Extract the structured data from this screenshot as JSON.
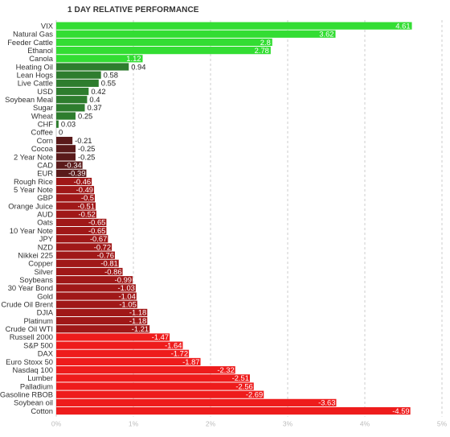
{
  "chart_data": {
    "type": "bar",
    "orientation": "horizontal",
    "title": "1 DAY RELATIVE PERFORMANCE",
    "xlabel": "",
    "ylabel": "",
    "xlim": [
      0,
      5
    ],
    "grid": true,
    "x_ticks": [
      "0%",
      "1%",
      "2%",
      "3%",
      "4%",
      "5%"
    ],
    "colors": {
      "positive_bright": "#33dd33",
      "positive_dark": "#2e7d2e",
      "negative_dark": "#5a1a1a",
      "negative_mid": "#a01818",
      "negative_bright": "#ee1c1c",
      "grid": "#cccccc"
    },
    "categories": [
      "VIX",
      "Natural Gas",
      "Feeder Cattle",
      "Ethanol",
      "Canola",
      "Heating Oil",
      "Lean Hogs",
      "Live Cattle",
      "USD",
      "Soybean Meal",
      "Sugar",
      "Wheat",
      "CHF",
      "Coffee",
      "Corn",
      "Cocoa",
      "2 Year Note",
      "CAD",
      "EUR",
      "Rough Rice",
      "5 Year Note",
      "GBP",
      "Orange Juice",
      "AUD",
      "Oats",
      "10 Year Note",
      "JPY",
      "NZD",
      "Nikkei 225",
      "Copper",
      "Silver",
      "Soybeans",
      "30 Year Bond",
      "Gold",
      "Crude Oil Brent",
      "DJIA",
      "Platinum",
      "Crude Oil WTI",
      "Russell 2000",
      "S&P 500",
      "DAX",
      "Euro Stoxx 50",
      "Nasdaq 100",
      "Lumber",
      "Palladium",
      "Gasoline RBOB",
      "Soybean oil",
      "Cotton"
    ],
    "values": [
      4.61,
      3.62,
      2.8,
      2.78,
      1.12,
      0.94,
      0.58,
      0.55,
      0.42,
      0.4,
      0.37,
      0.25,
      0.03,
      0,
      -0.21,
      -0.25,
      -0.25,
      -0.34,
      -0.39,
      -0.46,
      -0.49,
      -0.5,
      -0.51,
      -0.52,
      -0.65,
      -0.65,
      -0.67,
      -0.72,
      -0.76,
      -0.81,
      -0.86,
      -0.99,
      -1.03,
      -1.04,
      -1.05,
      -1.18,
      -1.18,
      -1.21,
      -1.47,
      -1.64,
      -1.72,
      -1.87,
      -2.32,
      -2.51,
      -2.56,
      -2.69,
      -3.63,
      -4.59
    ],
    "value_labels": [
      "4.61",
      "3.62",
      "2.8",
      "2.78",
      "1.12",
      "0.94",
      "0.58",
      "0.55",
      "0.42",
      "0.4",
      "0.37",
      "0.25",
      "0.03",
      "0",
      "-0.21",
      "-0.25",
      "-0.25",
      "-0.34",
      "-0.39",
      "-0.46",
      "-0.49",
      "-0.5",
      "-0.51",
      "-0.52",
      "-0.65",
      "-0.65",
      "-0.67",
      "-0.72",
      "-0.76",
      "-0.81",
      "-0.86",
      "-0.99",
      "-1.03",
      "-1.04",
      "-1.05",
      "-1.18",
      "-1.18",
      "-1.21",
      "-1.47",
      "-1.64",
      "-1.72",
      "-1.87",
      "-2.32",
      "-2.51",
      "-2.56",
      "-2.69",
      "-3.63",
      "-4.59"
    ]
  }
}
